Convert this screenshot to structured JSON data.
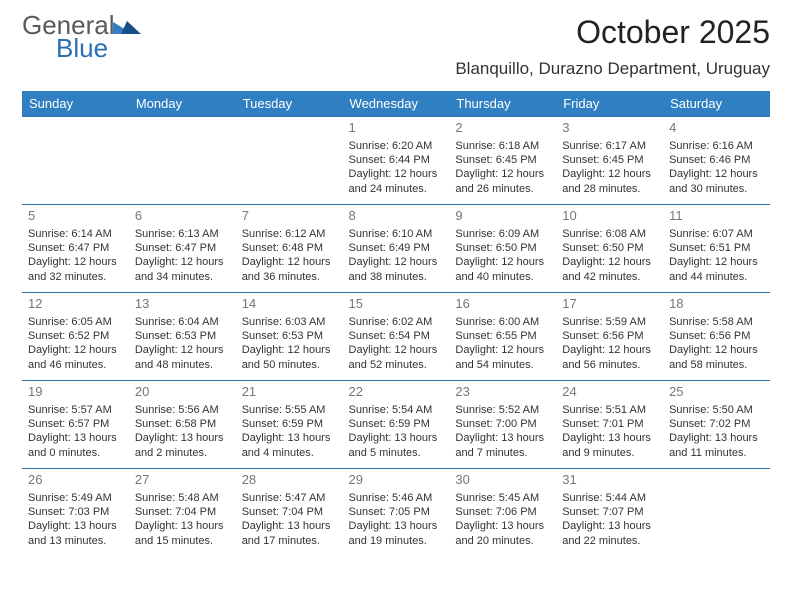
{
  "logo": {
    "general": "General",
    "blue": "Blue"
  },
  "title": "October 2025",
  "location": "Blanquillo, Durazno Department, Uruguay",
  "colors": {
    "header_bg": "#2f7fc2",
    "header_text": "#ffffff",
    "row_border": "#2f6fa8",
    "daynum": "#777777",
    "body_text": "#333333",
    "logo_gray": "#5a5a5a",
    "logo_blue": "#2a6fb5"
  },
  "weekdays": [
    "Sunday",
    "Monday",
    "Tuesday",
    "Wednesday",
    "Thursday",
    "Friday",
    "Saturday"
  ],
  "blanks_before": 3,
  "days": [
    {
      "n": 1,
      "sr": "6:20 AM",
      "ss": "6:44 PM",
      "dl1": "12 hours",
      "dl2": "and 24 minutes."
    },
    {
      "n": 2,
      "sr": "6:18 AM",
      "ss": "6:45 PM",
      "dl1": "12 hours",
      "dl2": "and 26 minutes."
    },
    {
      "n": 3,
      "sr": "6:17 AM",
      "ss": "6:45 PM",
      "dl1": "12 hours",
      "dl2": "and 28 minutes."
    },
    {
      "n": 4,
      "sr": "6:16 AM",
      "ss": "6:46 PM",
      "dl1": "12 hours",
      "dl2": "and 30 minutes."
    },
    {
      "n": 5,
      "sr": "6:14 AM",
      "ss": "6:47 PM",
      "dl1": "12 hours",
      "dl2": "and 32 minutes."
    },
    {
      "n": 6,
      "sr": "6:13 AM",
      "ss": "6:47 PM",
      "dl1": "12 hours",
      "dl2": "and 34 minutes."
    },
    {
      "n": 7,
      "sr": "6:12 AM",
      "ss": "6:48 PM",
      "dl1": "12 hours",
      "dl2": "and 36 minutes."
    },
    {
      "n": 8,
      "sr": "6:10 AM",
      "ss": "6:49 PM",
      "dl1": "12 hours",
      "dl2": "and 38 minutes."
    },
    {
      "n": 9,
      "sr": "6:09 AM",
      "ss": "6:50 PM",
      "dl1": "12 hours",
      "dl2": "and 40 minutes."
    },
    {
      "n": 10,
      "sr": "6:08 AM",
      "ss": "6:50 PM",
      "dl1": "12 hours",
      "dl2": "and 42 minutes."
    },
    {
      "n": 11,
      "sr": "6:07 AM",
      "ss": "6:51 PM",
      "dl1": "12 hours",
      "dl2": "and 44 minutes."
    },
    {
      "n": 12,
      "sr": "6:05 AM",
      "ss": "6:52 PM",
      "dl1": "12 hours",
      "dl2": "and 46 minutes."
    },
    {
      "n": 13,
      "sr": "6:04 AM",
      "ss": "6:53 PM",
      "dl1": "12 hours",
      "dl2": "and 48 minutes."
    },
    {
      "n": 14,
      "sr": "6:03 AM",
      "ss": "6:53 PM",
      "dl1": "12 hours",
      "dl2": "and 50 minutes."
    },
    {
      "n": 15,
      "sr": "6:02 AM",
      "ss": "6:54 PM",
      "dl1": "12 hours",
      "dl2": "and 52 minutes."
    },
    {
      "n": 16,
      "sr": "6:00 AM",
      "ss": "6:55 PM",
      "dl1": "12 hours",
      "dl2": "and 54 minutes."
    },
    {
      "n": 17,
      "sr": "5:59 AM",
      "ss": "6:56 PM",
      "dl1": "12 hours",
      "dl2": "and 56 minutes."
    },
    {
      "n": 18,
      "sr": "5:58 AM",
      "ss": "6:56 PM",
      "dl1": "12 hours",
      "dl2": "and 58 minutes."
    },
    {
      "n": 19,
      "sr": "5:57 AM",
      "ss": "6:57 PM",
      "dl1": "13 hours",
      "dl2": "and 0 minutes."
    },
    {
      "n": 20,
      "sr": "5:56 AM",
      "ss": "6:58 PM",
      "dl1": "13 hours",
      "dl2": "and 2 minutes."
    },
    {
      "n": 21,
      "sr": "5:55 AM",
      "ss": "6:59 PM",
      "dl1": "13 hours",
      "dl2": "and 4 minutes."
    },
    {
      "n": 22,
      "sr": "5:54 AM",
      "ss": "6:59 PM",
      "dl1": "13 hours",
      "dl2": "and 5 minutes."
    },
    {
      "n": 23,
      "sr": "5:52 AM",
      "ss": "7:00 PM",
      "dl1": "13 hours",
      "dl2": "and 7 minutes."
    },
    {
      "n": 24,
      "sr": "5:51 AM",
      "ss": "7:01 PM",
      "dl1": "13 hours",
      "dl2": "and 9 minutes."
    },
    {
      "n": 25,
      "sr": "5:50 AM",
      "ss": "7:02 PM",
      "dl1": "13 hours",
      "dl2": "and 11 minutes."
    },
    {
      "n": 26,
      "sr": "5:49 AM",
      "ss": "7:03 PM",
      "dl1": "13 hours",
      "dl2": "and 13 minutes."
    },
    {
      "n": 27,
      "sr": "5:48 AM",
      "ss": "7:04 PM",
      "dl1": "13 hours",
      "dl2": "and 15 minutes."
    },
    {
      "n": 28,
      "sr": "5:47 AM",
      "ss": "7:04 PM",
      "dl1": "13 hours",
      "dl2": "and 17 minutes."
    },
    {
      "n": 29,
      "sr": "5:46 AM",
      "ss": "7:05 PM",
      "dl1": "13 hours",
      "dl2": "and 19 minutes."
    },
    {
      "n": 30,
      "sr": "5:45 AM",
      "ss": "7:06 PM",
      "dl1": "13 hours",
      "dl2": "and 20 minutes."
    },
    {
      "n": 31,
      "sr": "5:44 AM",
      "ss": "7:07 PM",
      "dl1": "13 hours",
      "dl2": "and 22 minutes."
    }
  ],
  "labels": {
    "sunrise": "Sunrise:",
    "sunset": "Sunset:",
    "daylight": "Daylight:"
  }
}
